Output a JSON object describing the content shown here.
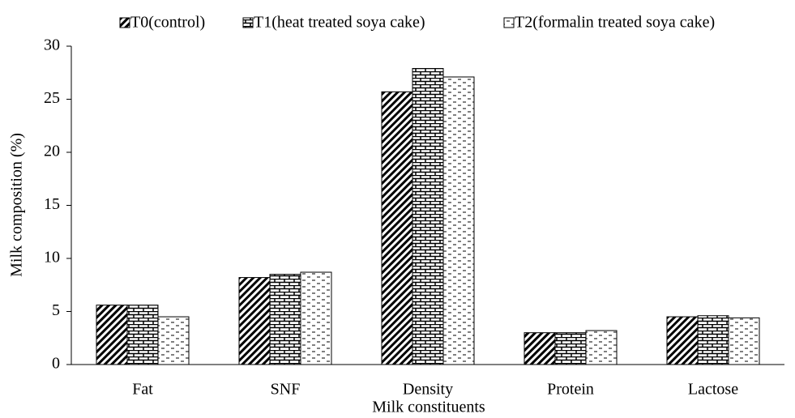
{
  "chart_data": {
    "type": "bar",
    "x_label": "Milk constituents",
    "y_label": "Milk composition (%)",
    "categories": [
      "Fat",
      "SNF",
      "Density",
      "Protein",
      "Lactose"
    ],
    "series": [
      {
        "name": "T0(control)",
        "color": "#000000",
        "pattern": "diagonal",
        "values": [
          5.6,
          8.2,
          25.7,
          3.0,
          4.5
        ]
      },
      {
        "name": "T1(heat treated soya cake)",
        "color": "#000000",
        "pattern": "brick",
        "values": [
          5.6,
          8.5,
          27.9,
          3.0,
          4.6
        ]
      },
      {
        "name": "T2(formalin treated soya cake)",
        "color": "#000000",
        "pattern": "dash",
        "values": [
          4.5,
          8.7,
          27.1,
          3.2,
          4.4
        ]
      }
    ],
    "ylim": [
      0,
      30
    ],
    "yticks": [
      0,
      5,
      10,
      15,
      20,
      25,
      30
    ],
    "legend": "top",
    "grid": false
  }
}
